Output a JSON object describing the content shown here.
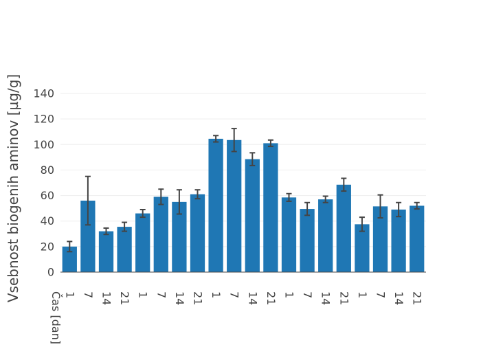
{
  "chart_data": {
    "type": "bar",
    "title": "",
    "xlabel": "",
    "ylabel": "Vsebnost biogenih aminov [µg/g]",
    "x_category_label": "Čas [dan]",
    "categories": [
      "1",
      "7",
      "14",
      "21",
      "1",
      "7",
      "14",
      "21",
      "1",
      "7",
      "14",
      "21",
      "1",
      "7",
      "14",
      "21",
      "1",
      "7",
      "14",
      "21"
    ],
    "values": [
      20,
      56,
      32,
      35.5,
      46,
      59,
      55,
      61,
      104.5,
      103.5,
      88.5,
      101,
      58.5,
      49.5,
      57,
      68.5,
      37.5,
      51.5,
      49,
      52
    ],
    "error": [
      4,
      19,
      2.5,
      3.5,
      3,
      6,
      9.5,
      3.5,
      2.5,
      9,
      5,
      2.5,
      3,
      5,
      2.5,
      5,
      5.5,
      9,
      5.5,
      2.5
    ],
    "ylim": [
      0,
      140
    ],
    "yticks": [
      0,
      20,
      40,
      60,
      80,
      100,
      120,
      140
    ],
    "grid": true,
    "colors": {
      "bar": "#1f77b4",
      "error_bar": "#444444",
      "grid": "#eeeeee",
      "axis": "#444444"
    }
  }
}
